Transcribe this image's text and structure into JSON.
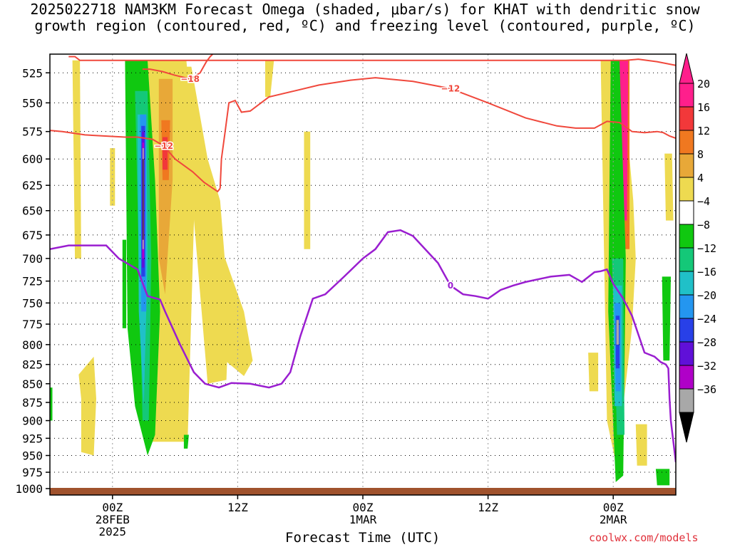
{
  "title_line1": "2025022718 NAM3KM Forecast Omega (shaded, μbar/s) for KHAT with dendritic snow",
  "title_line2": "growth region (contoured, red, ºC) and freezing level (contoured, purple, ºC)",
  "credit": "coolwx.com/models",
  "chart_data": {
    "type": "heatmap",
    "title": "2025022718 NAM3KM Forecast Omega (shaded, μbar/s) for KHAT with dendritic snow growth region (contoured, red, ºC) and freezing level (contoured, purple, ºC)",
    "xlabel": "Forecast Time (UTC)",
    "ylabel": "",
    "x_unit": "forecast hour",
    "xlim": [
      -5,
      45
    ],
    "ylim_hPa": [
      1010,
      510
    ],
    "y_scale": "log-pressure (inverted)",
    "grid": true,
    "x_ticks": [
      {
        "hour": 0,
        "lines": [
          "00Z",
          "28FEB",
          "2025"
        ]
      },
      {
        "hour": 10,
        "lines": [
          "12Z"
        ]
      },
      {
        "hour": 20,
        "lines": [
          "00Z",
          "1MAR"
        ]
      },
      {
        "hour": 30,
        "lines": [
          "12Z"
        ]
      },
      {
        "hour": 40,
        "lines": [
          "00Z",
          "2MAR"
        ]
      }
    ],
    "y_ticks": [
      525,
      550,
      575,
      600,
      625,
      650,
      675,
      700,
      725,
      750,
      775,
      800,
      825,
      850,
      875,
      900,
      925,
      950,
      975,
      1000
    ],
    "colorbar": {
      "labels": [
        "20",
        "16",
        "12",
        "8",
        "4",
        "−4",
        "−8",
        "−12",
        "−16",
        "−20",
        "−24",
        "−28",
        "−32",
        "−36"
      ],
      "colors": [
        "#ff1f8c",
        "#f2383a",
        "#f07820",
        "#e8a838",
        "#eeda50",
        "#ffffff",
        "#10c810",
        "#14c878",
        "#20c0c8",
        "#2496f0",
        "#2840e8",
        "#6010d8",
        "#b000c8",
        "#a8a8a8"
      ],
      "top_arrow_color": "#ff1f8c",
      "bottom_arrow_color": "#000000"
    },
    "omega_regions": [
      {
        "value": 6,
        "color": "#eeda50",
        "x": [
          -3.2,
          -2.6,
          -2.5,
          -3.0
        ],
        "p": [
          515,
          515,
          700,
          700
        ]
      },
      {
        "value": 6,
        "color": "#eeda50",
        "x": [
          2.1,
          5.9,
          6.3,
          6.6,
          6.0,
          2.8,
          2.3,
          2.2
        ],
        "p": [
          515,
          515,
          560,
          620,
          930,
          930,
          700,
          520
        ]
      },
      {
        "value": 6,
        "color": "#eeda50",
        "x": [
          5.8,
          6.3,
          7.6,
          8.6,
          9.3,
          9.1,
          7.6,
          6.1
        ],
        "p": [
          520,
          520,
          600,
          640,
          760,
          845,
          850,
          600
        ]
      },
      {
        "value": 6,
        "color": "#eeda50",
        "x": [
          8.0,
          9.0,
          10.5,
          11.2,
          10.5,
          9.0
        ],
        "p": [
          700,
          700,
          760,
          820,
          840,
          820
        ]
      },
      {
        "value": 6,
        "color": "#eeda50",
        "x": [
          12.2,
          12.9,
          12.6,
          12.2
        ],
        "p": [
          515,
          515,
          545,
          545
        ]
      },
      {
        "value": 6,
        "color": "#eeda50",
        "x": [
          -0.2,
          0.2,
          0.2,
          -0.2
        ],
        "p": [
          590,
          590,
          645,
          645
        ]
      },
      {
        "value": 6,
        "color": "#eeda50",
        "x": [
          -2.7,
          -1.5,
          -1.3,
          -1.5,
          -2.5,
          -2.5
        ],
        "p": [
          838,
          815,
          870,
          950,
          945,
          870
        ]
      },
      {
        "value": 6,
        "color": "#eeda50",
        "x": [
          15.3,
          15.8,
          15.8,
          15.3
        ],
        "p": [
          575,
          575,
          690,
          690
        ]
      },
      {
        "value": 6,
        "color": "#eeda50",
        "x": [
          38.0,
          38.8,
          38.8,
          38.1
        ],
        "p": [
          810,
          810,
          860,
          860
        ]
      },
      {
        "value": 6,
        "color": "#eeda50",
        "x": [
          39.0,
          40.5,
          41.0,
          41.6,
          41.8,
          41.5,
          40.8,
          40.2,
          39.5
        ],
        "p": [
          515,
          515,
          560,
          640,
          700,
          780,
          880,
          960,
          900
        ]
      },
      {
        "value": 6,
        "color": "#eeda50",
        "x": [
          44.1,
          44.7,
          44.8,
          44.2
        ],
        "p": [
          595,
          595,
          660,
          660
        ]
      },
      {
        "value": 6,
        "color": "#eeda50",
        "x": [
          41.8,
          42.7,
          42.7,
          41.9
        ],
        "p": [
          905,
          905,
          965,
          965
        ]
      },
      {
        "value": 10,
        "color": "#e8a838",
        "x": [
          3.7,
          4.8,
          4.8,
          4.2,
          3.7
        ],
        "p": [
          530,
          530,
          620,
          740,
          700
        ]
      },
      {
        "value": 14,
        "color": "#f07820",
        "x": [
          3.9,
          4.6,
          4.5,
          4.0
        ],
        "p": [
          565,
          565,
          620,
          620
        ]
      },
      {
        "value": 14,
        "color": "#f07820",
        "x": [
          40.3,
          41.3,
          41.3,
          40.4
        ],
        "p": [
          515,
          515,
          690,
          690
        ]
      },
      {
        "value": 18,
        "color": "#f2383a",
        "x": [
          4.0,
          4.4,
          4.4,
          4.0
        ],
        "p": [
          580,
          580,
          610,
          610
        ]
      },
      {
        "value": 24,
        "color": "#ff1f8c",
        "x": [
          40.4,
          41.2,
          41.1,
          40.5
        ],
        "p": [
          515,
          515,
          660,
          660
        ]
      },
      {
        "value": -6,
        "color": "#10c810",
        "x": [
          1.0,
          2.8,
          3.4,
          3.8,
          3.4,
          2.8,
          1.8,
          1.2
        ],
        "p": [
          515,
          515,
          620,
          760,
          920,
          950,
          880,
          780
        ]
      },
      {
        "value": -6,
        "color": "#10c810",
        "x": [
          0.8,
          1.1,
          1.1,
          0.8
        ],
        "p": [
          680,
          680,
          780,
          780
        ]
      },
      {
        "value": -6,
        "color": "#10c810",
        "x": [
          5.7,
          6.1,
          6.0,
          5.7
        ],
        "p": [
          920,
          920,
          940,
          940
        ]
      },
      {
        "value": -6,
        "color": "#10c810",
        "x": [
          -5.0,
          -4.8,
          -4.8,
          -5.0
        ],
        "p": [
          855,
          855,
          900,
          900
        ]
      },
      {
        "value": -6,
        "color": "#10c810",
        "x": [
          39.8,
          40.5,
          41.0,
          40.8,
          40.2,
          39.6
        ],
        "p": [
          515,
          515,
          700,
          980,
          990,
          760
        ]
      },
      {
        "value": -6,
        "color": "#10c810",
        "x": [
          43.9,
          44.6,
          44.5,
          44.0
        ],
        "p": [
          720,
          720,
          820,
          820
        ]
      },
      {
        "value": -6,
        "color": "#10c810",
        "x": [
          43.4,
          44.5,
          44.5,
          43.5
        ],
        "p": [
          970,
          970,
          995,
          995
        ]
      },
      {
        "value": -10,
        "color": "#14c878",
        "x": [
          1.8,
          2.8,
          3.1,
          2.9,
          2.4
        ],
        "p": [
          540,
          540,
          700,
          900,
          900
        ]
      },
      {
        "value": -10,
        "color": "#14c878",
        "x": [
          39.9,
          40.8,
          40.9,
          40.3
        ],
        "p": [
          700,
          700,
          920,
          920
        ]
      },
      {
        "value": -14,
        "color": "#20c0c8",
        "x": [
          2.0,
          2.7,
          2.8,
          2.5,
          2.1
        ],
        "p": [
          560,
          560,
          700,
          880,
          760
        ]
      },
      {
        "value": -14,
        "color": "#20c0c8",
        "x": [
          40.0,
          40.7,
          40.7,
          40.1
        ],
        "p": [
          730,
          730,
          880,
          880
        ]
      },
      {
        "value": -18,
        "color": "#2496f0",
        "x": [
          2.2,
          2.7,
          2.7,
          2.3
        ],
        "p": [
          560,
          560,
          760,
          760
        ]
      },
      {
        "value": -18,
        "color": "#2496f0",
        "x": [
          40.1,
          40.6,
          40.6,
          40.2
        ],
        "p": [
          750,
          750,
          860,
          860
        ]
      },
      {
        "value": -22,
        "color": "#2840e8",
        "x": [
          2.3,
          2.6,
          2.6,
          2.3
        ],
        "p": [
          570,
          570,
          720,
          720
        ]
      },
      {
        "value": -22,
        "color": "#2840e8",
        "x": [
          40.2,
          40.5,
          40.5,
          40.2
        ],
        "p": [
          765,
          765,
          830,
          830
        ]
      },
      {
        "value": -26,
        "color": "#6010d8",
        "x": [
          2.35,
          2.55,
          2.55,
          2.35
        ],
        "p": [
          575,
          575,
          710,
          710
        ]
      },
      {
        "value": -30,
        "color": "#b000c8",
        "x": [
          2.38,
          2.52,
          2.52,
          2.38
        ],
        "p": [
          585,
          585,
          700,
          700
        ]
      },
      {
        "value": -34,
        "color": "#a8a8a8",
        "x": [
          2.4,
          2.5,
          2.5,
          2.4
        ],
        "p": [
          590,
          590,
          690,
          690
        ]
      },
      {
        "value": -34,
        "color": "#a8a8a8",
        "x": [
          40.25,
          40.45,
          40.45,
          40.25
        ],
        "p": [
          770,
          770,
          800,
          800
        ]
      },
      {
        "value": -38,
        "color": "#000000",
        "x": [
          2.42,
          2.48,
          2.48,
          2.42
        ],
        "p": [
          600,
          600,
          680,
          680
        ]
      }
    ],
    "red_isotherms": [
      {
        "label": "−12",
        "x": [
          -5.0,
          -4.0,
          -2.2,
          1.0,
          2.0,
          3.2,
          4.1,
          5.0,
          6.4,
          7.3,
          8.4,
          8.6
        ],
        "p": [
          574,
          575,
          578,
          580,
          580,
          582,
          588,
          600,
          612,
          622,
          631,
          628
        ]
      },
      {
        "label": "−12",
        "x": [
          8.6,
          8.7,
          9.0,
          9.3,
          9.8,
          10.3,
          11.0,
          12.5,
          14.5,
          16.5,
          19.0,
          21.0,
          24.0,
          27.0,
          30.0,
          33.0,
          35.5,
          37.0,
          38.5,
          39.5,
          40.5,
          41.5,
          42.5,
          43.5,
          44.0,
          44.5,
          45.0
        ],
        "p": [
          628,
          600,
          575,
          550,
          548,
          558,
          557,
          545,
          540,
          535,
          531,
          529,
          532,
          538,
          550,
          563,
          570,
          572,
          572,
          566,
          567,
          575,
          576,
          575,
          576,
          579,
          581
        ]
      },
      {
        "label": "−18",
        "x": [
          2.4,
          3.0,
          4.0,
          5.0,
          6.2,
          7.0,
          7.5,
          7.8,
          8.0
        ],
        "p": [
          522,
          522,
          524,
          527,
          530,
          525,
          516,
          512,
          510
        ]
      },
      {
        "label": "",
        "x": [
          -3.5,
          -3.0,
          -2.6,
          -2.0,
          40.3,
          41.0,
          42.0,
          43.5,
          45.0
        ],
        "p": [
          512,
          512,
          515,
          515,
          515,
          515,
          514,
          516,
          519
        ]
      }
    ],
    "freezing_level": {
      "label": "0",
      "x": [
        -5.0,
        -3.5,
        -2.0,
        -0.5,
        0.5,
        2.0,
        2.8,
        3.8,
        4.2,
        5.4,
        6.5,
        7.4,
        8.5,
        9.5,
        11.0,
        12.5,
        13.5,
        14.2,
        15.0,
        16.0,
        17.0,
        18.5,
        20.0,
        21.0,
        22.0,
        23.0,
        24.0,
        26.0,
        27.0,
        28.0,
        29.0,
        30.0,
        31.0,
        32.0,
        33.0,
        35.0,
        36.5,
        37.5,
        38.5,
        39.0,
        39.5,
        40.0,
        40.8,
        41.5,
        42.5,
        43.3,
        43.8,
        44.2,
        44.4,
        44.5,
        44.6,
        45.0
      ],
      "p": [
        690,
        686,
        686,
        686,
        700,
        712,
        742,
        746,
        760,
        800,
        835,
        850,
        855,
        849,
        850,
        855,
        850,
        835,
        790,
        745,
        740,
        720,
        700,
        690,
        672,
        670,
        676,
        705,
        730,
        740,
        742,
        745,
        735,
        730,
        726,
        720,
        718,
        726,
        715,
        714,
        712,
        728,
        745,
        765,
        810,
        815,
        822,
        825,
        830,
        870,
        900,
        960
      ]
    }
  }
}
